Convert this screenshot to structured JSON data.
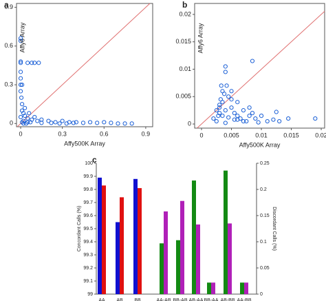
{
  "chart_data": [
    {
      "type": "scatter",
      "panel": "a",
      "xlabel": "Affy500K Array",
      "ylabel": "Affy6 Array",
      "color": "#1a5fd6",
      "x": [
        0,
        0,
        0,
        0,
        0,
        0,
        0,
        0,
        0.005,
        0.01,
        0.05,
        0.08,
        0.1,
        0.13,
        0.01,
        0.02,
        0.03,
        0.05,
        0.08,
        0.1,
        0.12,
        0.15,
        0.2,
        0.25,
        0.3,
        0.35,
        0.4,
        0.45,
        0.5,
        0.55,
        0.6,
        0.65,
        0.7,
        0.75,
        0.8,
        0.05,
        0.15,
        0.22,
        0.28,
        0.33,
        0.38,
        0.02,
        0.03,
        0.01,
        0.06,
        0,
        0.01,
        0.02,
        0.04,
        0.07
      ],
      "y": [
        0.66,
        0.64,
        0.48,
        0.47,
        0.4,
        0.35,
        0.3,
        0.25,
        0.2,
        0.15,
        0.47,
        0.47,
        0.47,
        0.47,
        0.1,
        0.08,
        0.06,
        0.04,
        0.03,
        0.05,
        0.02,
        0.03,
        0.02,
        0.01,
        0.02,
        0.01,
        0.01,
        0.005,
        0.01,
        0.005,
        0.01,
        0.005,
        0,
        0,
        0,
        0.01,
        0.005,
        0.005,
        0,
        0,
        0.005,
        0.02,
        0.12,
        0.3,
        0.08,
        0.05,
        0.01,
        0,
        0,
        0.01
      ],
      "xlim": [
        -0.03,
        0.95
      ],
      "ylim": [
        -0.025,
        0.93
      ],
      "xticks": [
        0,
        0.3,
        0.6,
        0.9
      ],
      "yticks": [
        0,
        0.3,
        0.6,
        0.9
      ]
    },
    {
      "type": "scatter",
      "panel": "b",
      "xlabel": "Affy500K Array",
      "ylabel": "Affy6 Array",
      "color": "#1a5fd6",
      "x": [
        0.002,
        0.0025,
        0.003,
        0.003,
        0.0035,
        0.0035,
        0.004,
        0.004,
        0.0042,
        0.0045,
        0.005,
        0.005,
        0.0055,
        0.006,
        0.006,
        0.0065,
        0.007,
        0.0075,
        0.008,
        0.008,
        0.0085,
        0.009,
        0.01,
        0.011,
        0.012,
        0.013,
        0.0035,
        0.004,
        0.003,
        0.0045,
        0.005,
        0.0038,
        0.0033,
        0.0028,
        0.006,
        0.007,
        0.0085,
        0.0125,
        0.0145,
        0.019,
        0.0025,
        0.004,
        0.0055,
        0.0095,
        0.0032
      ],
      "y": [
        0.001,
        0.0005,
        0.002,
        0.003,
        0.004,
        0.006,
        0.0105,
        0.0095,
        0.007,
        0.005,
        0.003,
        0.0045,
        0.002,
        0.0015,
        0.004,
        0.001,
        0.0025,
        0.0005,
        0.003,
        0.0015,
        0.0115,
        0.001,
        0.0015,
        0.0005,
        0.0008,
        0.0005,
        0.0015,
        0.0025,
        0.0035,
        0.0012,
        0.006,
        0.0055,
        0.007,
        0.0015,
        0.0008,
        0.0005,
        0.002,
        0.0022,
        0.001,
        0.001,
        0.0025,
        0.0002,
        0.0008,
        0.0003,
        0.0045
      ],
      "xlim": [
        -0.00115,
        0.02057
      ],
      "ylim": [
        -0.00075,
        0.022
      ],
      "xticks": [
        0,
        0.005,
        0.01,
        0.015,
        0.02
      ],
      "yticks": [
        0,
        0.005,
        0.01,
        0.015,
        0.02
      ]
    },
    {
      "type": "bar",
      "panel": "c",
      "ylabel": "Concordant Calls (%)",
      "y2label": "Discordant Calls (%)",
      "categories": [
        "AA",
        "AB",
        "BB",
        "AA-AB",
        "BB-AB",
        "AB-AA",
        "BB-AA",
        "AB-BB",
        "AA-BB"
      ],
      "series": [
        {
          "color": "#1010d0",
          "values": [
            99.89,
            99.55,
            99.88,
            null,
            null,
            null,
            null,
            null,
            null
          ]
        },
        {
          "color": "#e01010",
          "values": [
            99.83,
            99.74,
            99.81,
            null,
            null,
            null,
            null,
            null,
            null
          ]
        },
        {
          "color": "#138a13",
          "axis": "y2",
          "values": [
            null,
            null,
            null,
            0.097,
            0.103,
            0.217,
            0.022,
            0.236,
            0.022
          ]
        },
        {
          "color": "#b020b8",
          "axis": "y2",
          "values": [
            null,
            null,
            null,
            0.158,
            0.178,
            0.133,
            0.022,
            0.135,
            0.022
          ]
        }
      ],
      "ylim": [
        99,
        100
      ],
      "yticks": [
        99,
        99.1,
        99.2,
        99.3,
        99.4,
        99.5,
        99.6,
        99.7,
        99.8,
        99.9,
        100
      ],
      "y2lim": [
        0,
        0.25
      ],
      "y2ticks": [
        0,
        0.05,
        0.1,
        0.15,
        0.2,
        0.25
      ]
    }
  ]
}
